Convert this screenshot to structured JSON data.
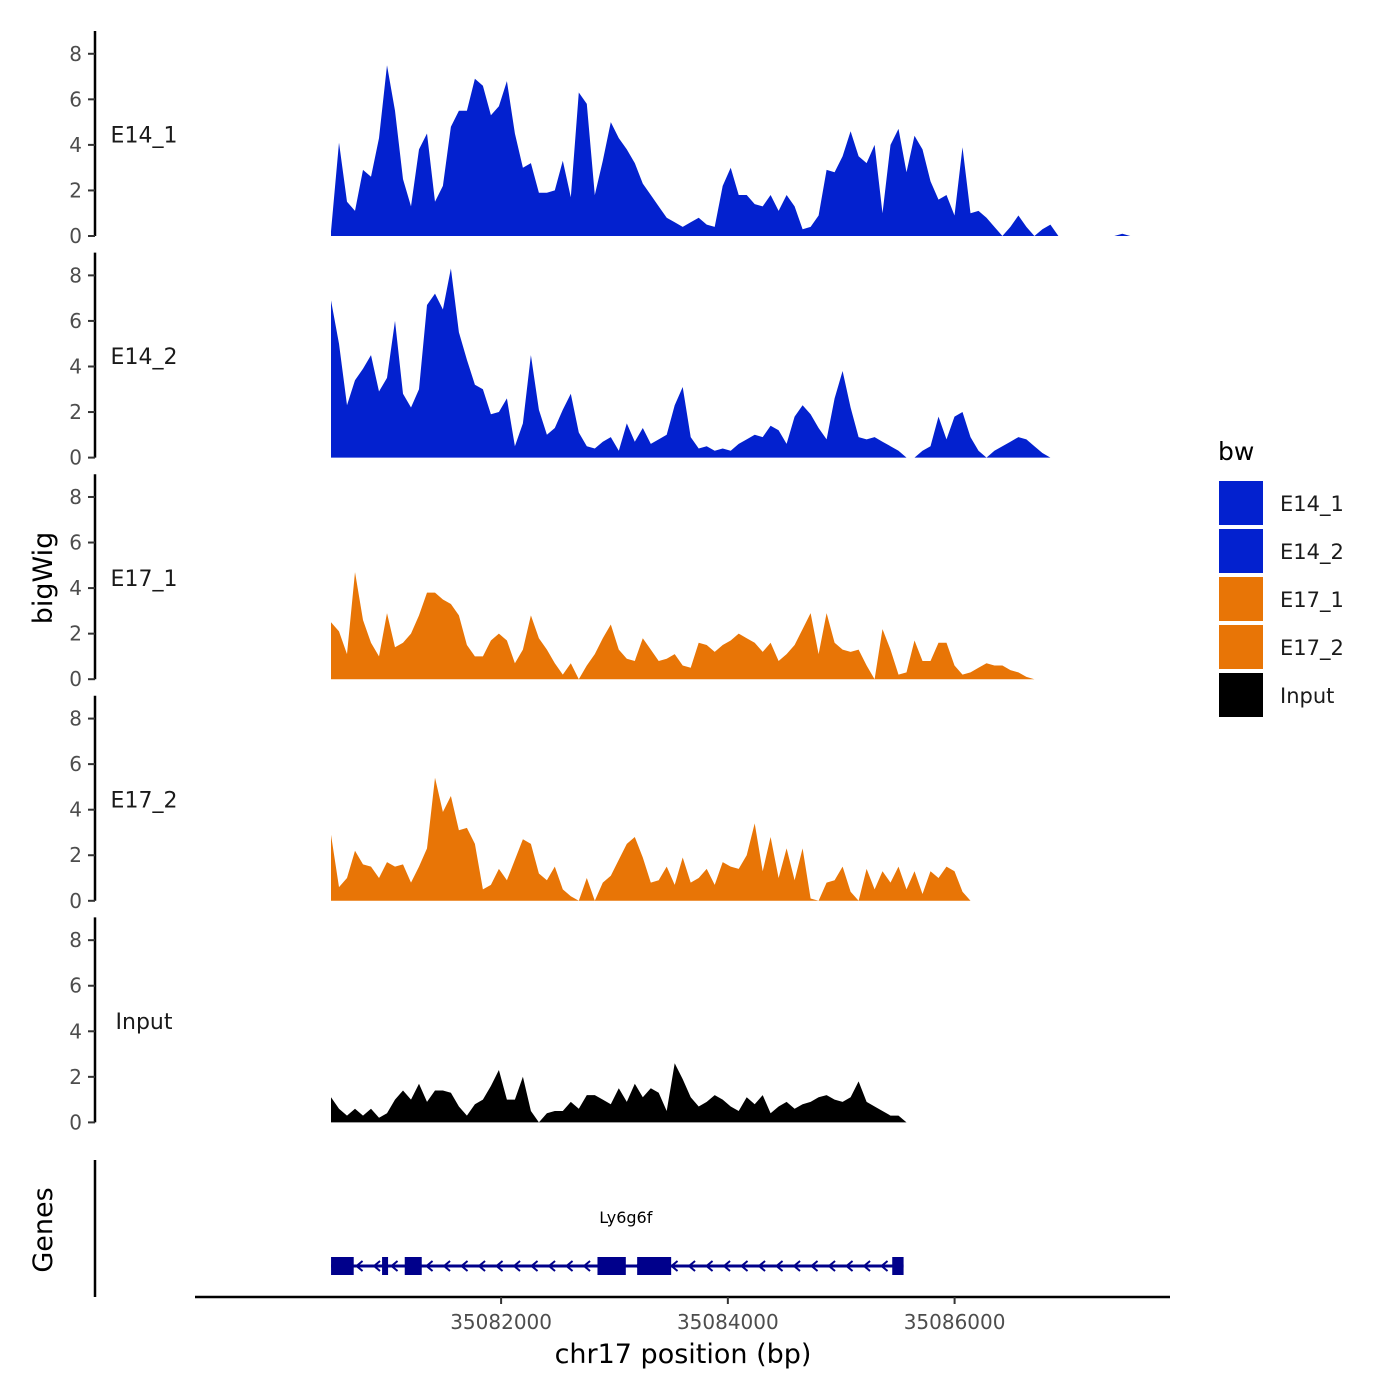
{
  "chart_data": {
    "type": "area",
    "title": "",
    "ylabel": "bigWig",
    "xlabel": "chr17 position (bp)",
    "xlim": [
      35079300,
      35087900
    ],
    "ylim": [
      0,
      9
    ],
    "yticks": [
      0,
      2,
      4,
      6,
      8
    ],
    "yticks_text": [
      "0",
      "2",
      "4",
      "6",
      "8"
    ],
    "xticks": [
      35082000,
      35084000,
      35086000
    ],
    "xticks_text": [
      "35082000",
      "35084000",
      "35086000"
    ],
    "grid": false,
    "legend": {
      "title": "bw",
      "position": "right",
      "entries": [
        {
          "name": "E14_1",
          "color": "#0321CF"
        },
        {
          "name": "E14_2",
          "color": "#0321CF"
        },
        {
          "name": "E17_1",
          "color": "#E87506"
        },
        {
          "name": "E17_2",
          "color": "#E87506"
        },
        {
          "name": "Input",
          "color": "#000000"
        }
      ]
    },
    "x_range": [
      35080500,
      35087550
    ],
    "series": [
      {
        "name": "E14_1",
        "label": "E14_1",
        "color": "#0321CF",
        "values": [
          0.2,
          4.1,
          1.5,
          1.1,
          2.9,
          2.6,
          4.3,
          7.5,
          5.5,
          2.5,
          1.3,
          3.8,
          4.5,
          1.5,
          2.2,
          4.8,
          5.5,
          5.5,
          6.9,
          6.6,
          5.3,
          5.7,
          6.8,
          4.5,
          3.0,
          3.2,
          1.9,
          1.9,
          2.0,
          3.3,
          1.7,
          6.3,
          5.8,
          1.8,
          3.3,
          5.0,
          4.3,
          3.8,
          3.2,
          2.3,
          1.8,
          1.3,
          0.8,
          0.6,
          0.4,
          0.6,
          0.8,
          0.5,
          0.4,
          2.2,
          3.0,
          1.8,
          1.8,
          1.4,
          1.3,
          1.8,
          1.1,
          1.8,
          1.3,
          0.3,
          0.4,
          0.9,
          2.9,
          2.8,
          3.5,
          4.6,
          3.5,
          3.2,
          4.0,
          1.0,
          4.0,
          4.7,
          2.8,
          4.4,
          3.8,
          2.4,
          1.6,
          1.8,
          0.9,
          3.9,
          1.0,
          1.1,
          0.8,
          0.4,
          0.0,
          0.4,
          0.9,
          0.4,
          0.0,
          0.3,
          0.5,
          0.0,
          0.0,
          0.0,
          0.0,
          0.0,
          0.0,
          0.0,
          0.0,
          0.1,
          0.0
        ]
      },
      {
        "name": "E14_2",
        "label": "E14_2",
        "color": "#0321CF",
        "values": [
          6.9,
          5.0,
          2.3,
          3.4,
          3.9,
          4.5,
          2.9,
          3.5,
          6.0,
          2.8,
          2.2,
          3.0,
          6.7,
          7.2,
          6.5,
          8.3,
          5.5,
          4.3,
          3.2,
          3.0,
          1.9,
          2.0,
          2.6,
          0.5,
          1.5,
          4.5,
          2.1,
          1.0,
          1.3,
          2.1,
          2.8,
          1.1,
          0.5,
          0.4,
          0.7,
          0.9,
          0.3,
          1.5,
          0.7,
          1.3,
          0.6,
          0.8,
          1.0,
          2.3,
          3.1,
          0.9,
          0.4,
          0.5,
          0.3,
          0.4,
          0.3,
          0.6,
          0.8,
          1.0,
          0.9,
          1.4,
          1.2,
          0.6,
          1.8,
          2.3,
          1.9,
          1.3,
          0.8,
          2.6,
          3.8,
          2.2,
          0.9,
          0.8,
          0.9,
          0.7,
          0.5,
          0.3,
          0.0,
          0.0,
          0.3,
          0.5,
          1.8,
          0.8,
          1.8,
          2.0,
          0.9,
          0.3,
          0.0,
          0.3,
          0.5,
          0.7,
          0.9,
          0.8,
          0.5,
          0.2,
          0.0,
          0.0,
          0.0,
          0.0,
          0.0,
          0.0,
          0.0,
          0.0,
          0.0,
          0.0,
          0.0
        ]
      },
      {
        "name": "E17_1",
        "label": "E17_1",
        "color": "#E87506",
        "values": [
          2.5,
          2.1,
          1.1,
          4.7,
          2.6,
          1.6,
          1.0,
          2.9,
          1.4,
          1.6,
          2.0,
          2.8,
          3.8,
          3.8,
          3.5,
          3.3,
          2.8,
          1.5,
          1.0,
          1.0,
          1.7,
          2.0,
          1.7,
          0.7,
          1.3,
          2.8,
          1.8,
          1.3,
          0.7,
          0.2,
          0.7,
          0.0,
          0.6,
          1.1,
          1.8,
          2.4,
          1.3,
          0.9,
          0.8,
          1.8,
          1.3,
          0.8,
          0.9,
          1.1,
          0.6,
          0.5,
          1.6,
          1.5,
          1.2,
          1.5,
          1.7,
          2.0,
          1.8,
          1.6,
          1.2,
          1.6,
          0.8,
          1.1,
          1.5,
          2.2,
          2.9,
          1.1,
          2.9,
          1.6,
          1.3,
          1.2,
          1.3,
          0.6,
          0.0,
          2.2,
          1.3,
          0.2,
          0.3,
          1.7,
          0.8,
          0.8,
          1.6,
          1.6,
          0.6,
          0.2,
          0.3,
          0.5,
          0.7,
          0.6,
          0.6,
          0.4,
          0.3,
          0.1,
          0.0,
          0.0,
          0.0,
          0.0,
          0.0,
          0.0,
          0.0,
          0.0,
          0.0,
          0.0,
          0.0,
          0.0,
          0.0
        ]
      },
      {
        "name": "E17_2",
        "label": "E17_2",
        "color": "#E87506",
        "values": [
          2.9,
          0.6,
          1.0,
          2.2,
          1.6,
          1.5,
          1.0,
          1.7,
          1.5,
          1.6,
          0.8,
          1.5,
          2.3,
          5.4,
          3.9,
          4.6,
          3.1,
          3.2,
          2.5,
          0.5,
          0.7,
          1.4,
          0.9,
          1.8,
          2.7,
          2.5,
          1.2,
          0.9,
          1.5,
          0.5,
          0.2,
          0.0,
          1.0,
          0.0,
          0.8,
          1.1,
          1.8,
          2.5,
          2.8,
          1.9,
          0.8,
          0.9,
          1.5,
          0.7,
          1.9,
          0.8,
          1.0,
          1.4,
          0.7,
          1.7,
          1.5,
          1.4,
          2.0,
          3.4,
          1.3,
          2.8,
          1.0,
          2.3,
          0.9,
          2.3,
          0.1,
          0.0,
          0.8,
          0.9,
          1.5,
          0.4,
          0.0,
          1.4,
          0.5,
          1.3,
          0.8,
          1.5,
          0.5,
          1.3,
          0.3,
          1.3,
          1.0,
          1.5,
          1.3,
          0.4,
          0.0,
          0.0,
          0.0,
          0.0,
          0.0,
          0.0,
          0.0,
          0.0,
          0.0,
          0.0,
          0.0,
          0.0,
          0.0,
          0.0,
          0.0,
          0.0,
          0.0,
          0.0,
          0.0,
          0.0,
          0.0
        ]
      },
      {
        "name": "Input",
        "label": "Input",
        "color": "#000000",
        "values": [
          1.1,
          0.6,
          0.3,
          0.6,
          0.3,
          0.6,
          0.2,
          0.4,
          1.0,
          1.4,
          1.0,
          1.7,
          0.9,
          1.4,
          1.4,
          1.3,
          0.7,
          0.3,
          0.8,
          1.0,
          1.6,
          2.3,
          1.0,
          1.0,
          2.0,
          0.5,
          0.0,
          0.4,
          0.5,
          0.5,
          0.9,
          0.6,
          1.2,
          1.2,
          1.0,
          0.8,
          1.5,
          0.9,
          1.7,
          1.1,
          1.5,
          1.3,
          0.5,
          2.6,
          1.9,
          1.1,
          0.7,
          0.9,
          1.2,
          1.0,
          0.7,
          0.5,
          1.1,
          0.8,
          1.2,
          0.4,
          0.7,
          0.9,
          0.6,
          0.8,
          0.9,
          1.1,
          1.2,
          1.0,
          0.9,
          1.1,
          1.8,
          0.9,
          0.7,
          0.5,
          0.3,
          0.3,
          0.0,
          0.0,
          0.0,
          0.0,
          0.0,
          0.0,
          0.0,
          0.0,
          0.0,
          0.0,
          0.0,
          0.0,
          0.0,
          0.0,
          0.0,
          0.0,
          0.0,
          0.0,
          0.0,
          0.0,
          0.0,
          0.0,
          0.0,
          0.0,
          0.0,
          0.0,
          0.0,
          0.0,
          0.0
        ]
      }
    ],
    "genes_panel": {
      "ylabel": "Genes",
      "gene": {
        "name": "Ly6g6f",
        "color": "#00008B",
        "start": 35080500,
        "end": 35085550,
        "strand": "-",
        "exons": [
          [
            35080500,
            35080700
          ],
          [
            35080950,
            35081000
          ],
          [
            35081150,
            35081300
          ],
          [
            35082850,
            35083100
          ],
          [
            35083200,
            35083500
          ],
          [
            35085450,
            35085550
          ]
        ]
      }
    }
  }
}
